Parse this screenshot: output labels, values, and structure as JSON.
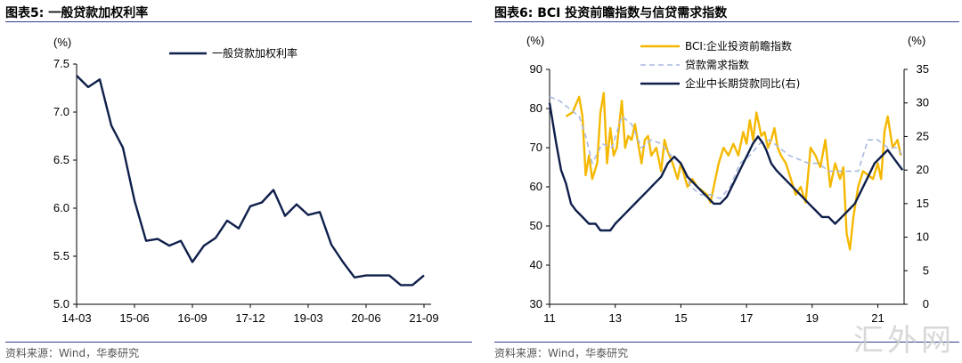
{
  "left": {
    "title": "图表5:  一般贷款加权利率",
    "source": "资料来源：Wind，华泰研究",
    "chart_data": {
      "type": "line",
      "unit_label": "(%)",
      "ylim": [
        5.0,
        7.5
      ],
      "yticks": [
        "5.0",
        "5.5",
        "6.0",
        "6.5",
        "7.0",
        "7.5"
      ],
      "xticks": [
        "14-03",
        "15-06",
        "16-09",
        "17-12",
        "19-03",
        "20-06",
        "21-09"
      ],
      "legend_position": "top-center",
      "color": "#0f1f4b",
      "series": [
        {
          "name": "一般贷款加权利率",
          "x": [
            "14-03",
            "14-06",
            "14-09",
            "14-12",
            "15-03",
            "15-06",
            "15-09",
            "15-12",
            "16-03",
            "16-06",
            "16-09",
            "16-12",
            "17-03",
            "17-06",
            "17-09",
            "17-12",
            "18-03",
            "18-06",
            "18-09",
            "18-12",
            "19-03",
            "19-06",
            "19-09",
            "19-12",
            "20-03",
            "20-06",
            "20-09",
            "20-12",
            "21-03",
            "21-06",
            "21-09"
          ],
          "values": [
            7.38,
            7.26,
            7.34,
            6.86,
            6.63,
            6.08,
            5.66,
            5.68,
            5.61,
            5.66,
            5.44,
            5.61,
            5.69,
            5.87,
            5.79,
            6.02,
            6.06,
            6.19,
            5.92,
            6.04,
            5.93,
            5.96,
            5.62,
            5.44,
            5.28,
            5.3,
            5.3,
            5.3,
            5.2,
            5.2,
            5.3
          ]
        }
      ]
    }
  },
  "right": {
    "title": "图表6:  BCI 投资前瞻指数与信贷需求指数",
    "source": "资料来源：Wind，华泰研究",
    "chart_data": {
      "type": "line",
      "left_unit_label": "(%)",
      "right_unit_label": "(%)",
      "ylim_left": [
        30,
        90
      ],
      "ylim_right": [
        0,
        35
      ],
      "yticks_left": [
        "30",
        "40",
        "50",
        "60",
        "70",
        "80",
        "90"
      ],
      "yticks_right": [
        "0",
        "5",
        "10",
        "15",
        "20",
        "25",
        "30",
        "35"
      ],
      "xlim": [
        2011,
        2021.8
      ],
      "xticks": [
        "11",
        "13",
        "15",
        "17",
        "19",
        "21"
      ],
      "legend_position": "top-center",
      "series": [
        {
          "name": "BCI:企业投资前瞻指数",
          "axis": "left",
          "color": "#f5b800",
          "x": [
            2011.5,
            2011.7,
            2011.9,
            2012.0,
            2012.1,
            2012.2,
            2012.3,
            2012.45,
            2012.55,
            2012.65,
            2012.75,
            2012.85,
            2012.95,
            2013.05,
            2013.2,
            2013.3,
            2013.4,
            2013.5,
            2013.6,
            2013.7,
            2013.8,
            2013.9,
            2014.0,
            2014.1,
            2014.25,
            2014.4,
            2014.5,
            2014.6,
            2014.75,
            2014.9,
            2015.0,
            2015.2,
            2015.35,
            2015.5,
            2015.65,
            2015.8,
            2015.9,
            2016.0,
            2016.15,
            2016.3,
            2016.45,
            2016.6,
            2016.75,
            2016.9,
            2017.0,
            2017.1,
            2017.2,
            2017.3,
            2017.45,
            2017.55,
            2017.65,
            2017.75,
            2017.85,
            2017.95,
            2018.05,
            2018.2,
            2018.35,
            2018.5,
            2018.65,
            2018.8,
            2018.95,
            2019.1,
            2019.25,
            2019.4,
            2019.55,
            2019.7,
            2019.85,
            2019.95,
            2020.05,
            2020.15,
            2020.25,
            2020.4,
            2020.55,
            2020.7,
            2020.85,
            2021.0,
            2021.1,
            2021.2,
            2021.3,
            2021.45,
            2021.6,
            2021.7
          ],
          "values": [
            78,
            79,
            83,
            78,
            63,
            68,
            62,
            66,
            79,
            84,
            66,
            75,
            68,
            70,
            82,
            70,
            73,
            72,
            76,
            71,
            66,
            72,
            73,
            68,
            70,
            64,
            72,
            69,
            66,
            62,
            66,
            60,
            62,
            60,
            59,
            58,
            56,
            60,
            66,
            70,
            68,
            71,
            68,
            74,
            71,
            77,
            72,
            79,
            73,
            74,
            70,
            72,
            75,
            70,
            68,
            66,
            62,
            58,
            60,
            56,
            70,
            68,
            65,
            72,
            60,
            66,
            62,
            65,
            48,
            44,
            52,
            60,
            64,
            63,
            62,
            66,
            62,
            74,
            78,
            70,
            72,
            68
          ]
        },
        {
          "name": "贷款需求指数",
          "axis": "left",
          "color": "#a9b9e0",
          "dashed": true,
          "x": [
            2011.0,
            2011.3,
            2011.6,
            2011.9,
            2012.1,
            2012.3,
            2012.6,
            2012.9,
            2013.2,
            2013.5,
            2013.8,
            2014.1,
            2014.4,
            2014.7,
            2015.0,
            2015.3,
            2015.6,
            2015.9,
            2016.2,
            2016.5,
            2016.8,
            2017.1,
            2017.4,
            2017.7,
            2018.0,
            2018.3,
            2018.6,
            2018.9,
            2019.2,
            2019.5,
            2019.8,
            2020.1,
            2020.4,
            2020.7,
            2021.0,
            2021.3,
            2021.6,
            2021.75
          ],
          "values": [
            83,
            82,
            80,
            78,
            73,
            66,
            71,
            70,
            78,
            76,
            70,
            72,
            71,
            68,
            66,
            60,
            58,
            58,
            57,
            60,
            66,
            68,
            71,
            72,
            70,
            68,
            67,
            66,
            66,
            64,
            64,
            64,
            64,
            72,
            72,
            70,
            70,
            68
          ]
        },
        {
          "name": "企业中长期贷款同比(右)",
          "axis": "right",
          "color": "#0f1f4b",
          "x": [
            2011.0,
            2011.1,
            2011.2,
            2011.35,
            2011.5,
            2011.65,
            2011.8,
            2012.0,
            2012.2,
            2012.4,
            2012.55,
            2012.7,
            2012.85,
            2013.0,
            2013.2,
            2013.4,
            2013.6,
            2013.8,
            2014.0,
            2014.2,
            2014.4,
            2014.6,
            2014.8,
            2015.0,
            2015.2,
            2015.4,
            2015.6,
            2015.8,
            2016.0,
            2016.2,
            2016.4,
            2016.6,
            2016.8,
            2017.0,
            2017.2,
            2017.35,
            2017.5,
            2017.6,
            2017.75,
            2017.9,
            2018.1,
            2018.3,
            2018.5,
            2018.7,
            2018.9,
            2019.1,
            2019.3,
            2019.5,
            2019.7,
            2019.9,
            2020.1,
            2020.3,
            2020.5,
            2020.7,
            2020.9,
            2021.1,
            2021.3,
            2021.45,
            2021.6,
            2021.75
          ],
          "values": [
            30,
            27,
            24,
            20,
            18,
            15,
            14,
            13,
            12,
            12,
            11,
            11,
            11,
            12,
            13,
            14,
            15,
            16,
            17,
            18,
            19,
            21,
            22,
            21,
            19,
            18,
            17,
            16,
            15,
            15,
            16,
            18,
            20,
            22,
            24,
            25,
            24,
            23,
            21,
            20,
            19,
            18,
            17,
            16,
            15,
            14,
            13,
            13,
            12,
            13,
            14,
            15,
            17,
            19,
            21,
            22,
            23,
            22,
            21,
            20
          ]
        }
      ]
    }
  },
  "watermark": "汇外网"
}
